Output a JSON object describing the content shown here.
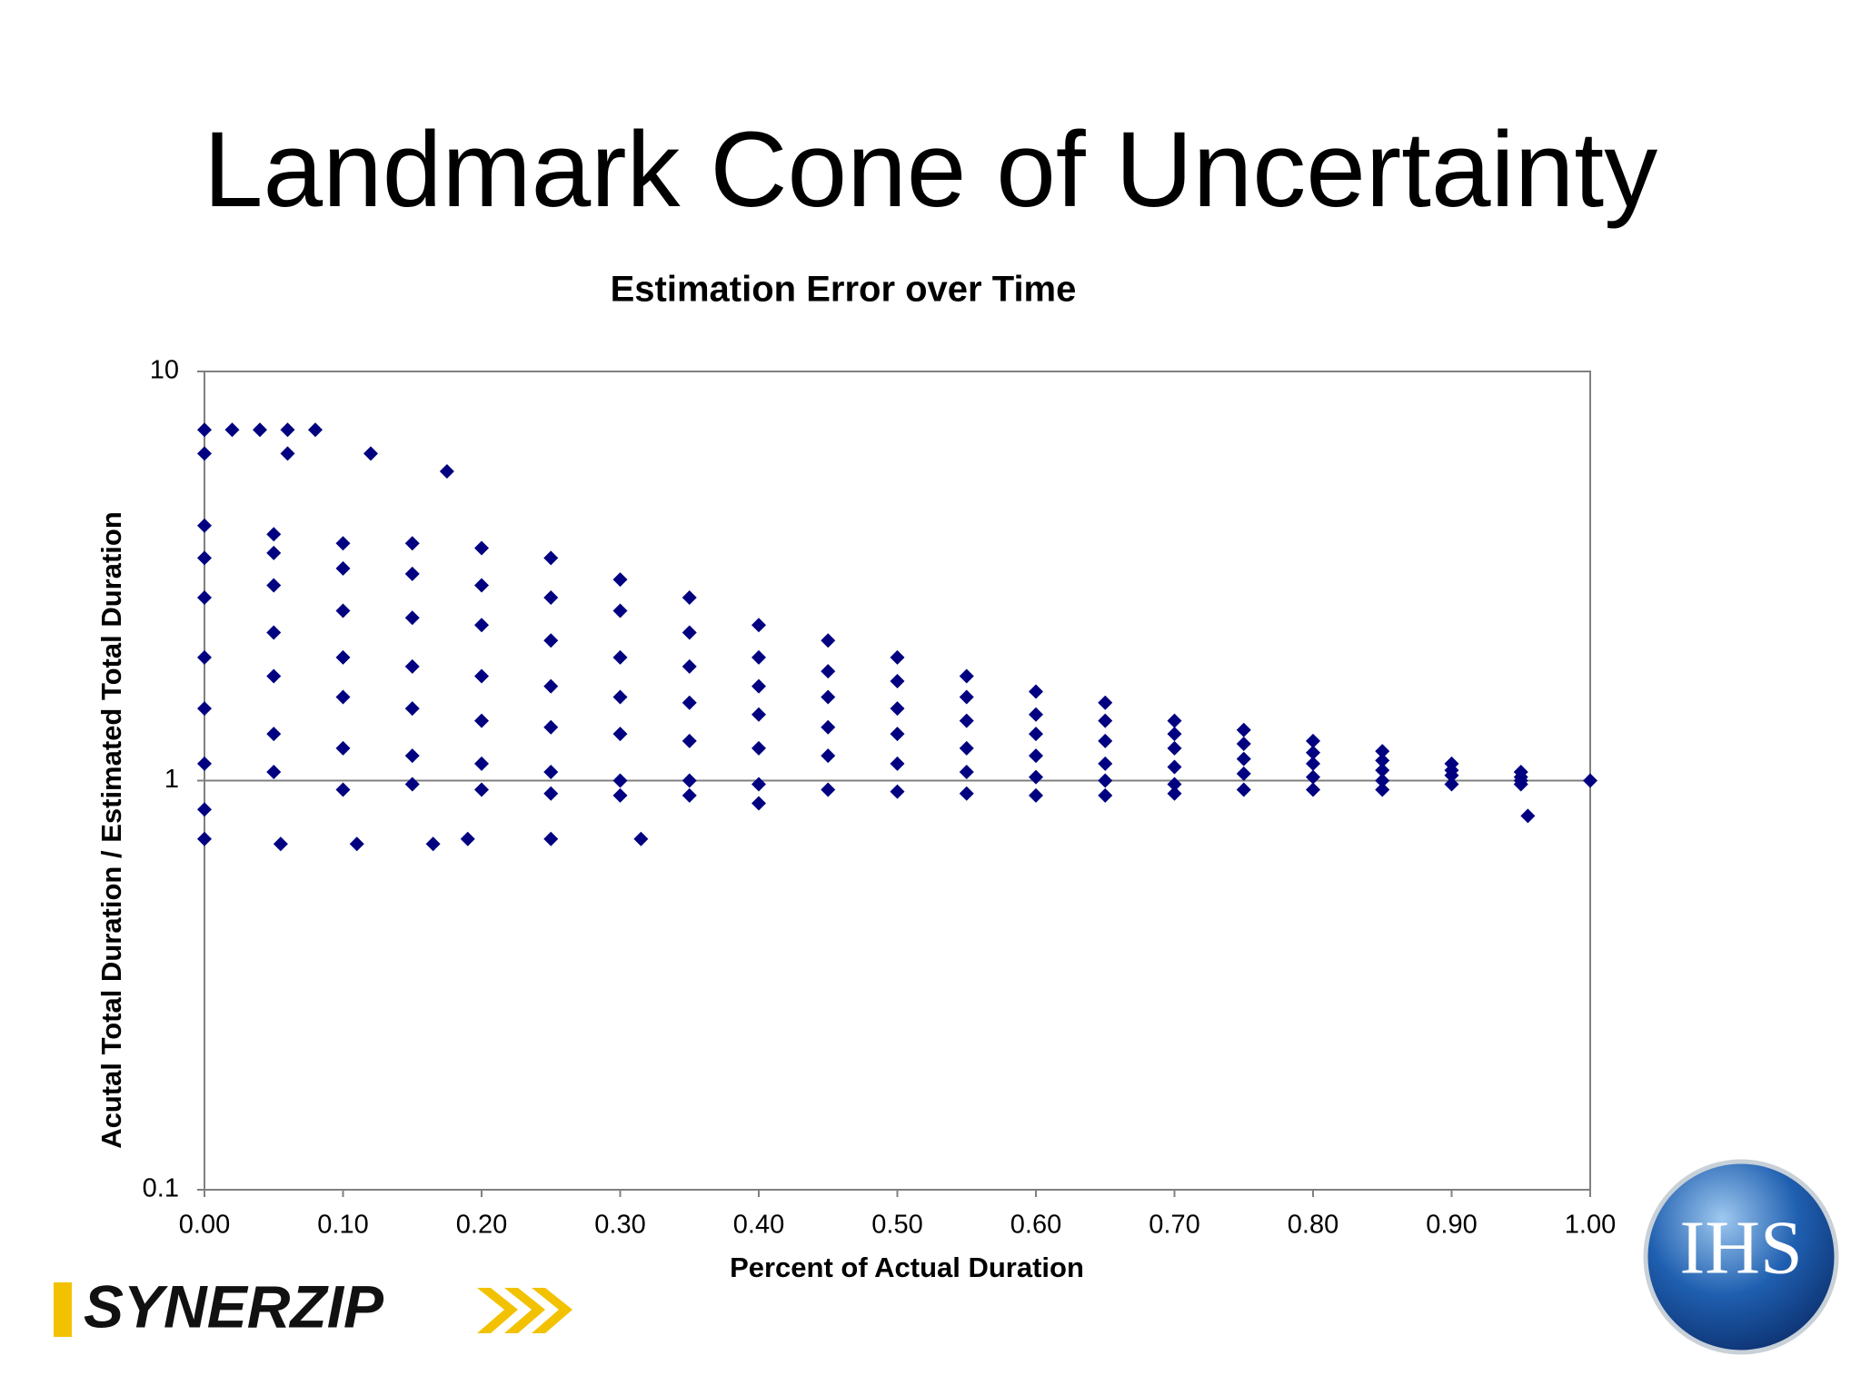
{
  "slide": {
    "title": "Landmark Cone of Uncertainty"
  },
  "logos": {
    "left": "SYNERZIP",
    "right": "IHS"
  },
  "chart_data": {
    "type": "scatter",
    "title": "Estimation Error over Time",
    "x_label": "Percent of Actual Duration",
    "y_label": "Acutal Total Duration / Estimated Total Duration",
    "color": "#000080",
    "yscale": "log",
    "grid": true,
    "xlim": [
      0,
      1
    ],
    "ylim": [
      0.1,
      10
    ],
    "xticks": [
      {
        "value": 0,
        "label": "0.00"
      },
      {
        "value": 0.1,
        "label": "0.10"
      },
      {
        "value": 0.2,
        "label": "0.20"
      },
      {
        "value": 0.3,
        "label": "0.30"
      },
      {
        "value": 0.4,
        "label": "0.40"
      },
      {
        "value": 0.5,
        "label": "0.50"
      },
      {
        "value": 0.6,
        "label": "0.60"
      },
      {
        "value": 0.7,
        "label": "0.70"
      },
      {
        "value": 0.8,
        "label": "0.80"
      },
      {
        "value": 0.9,
        "label": "0.90"
      },
      {
        "value": 1,
        "label": "1.00"
      }
    ],
    "yticks": [
      0.1,
      1,
      10
    ],
    "x": [
      0,
      0.02,
      0.04,
      0.06,
      0.08,
      0.12,
      0.175,
      0.06,
      0,
      0.055,
      0.11,
      0.165,
      0.19,
      0.25,
      0.315,
      0.955,
      0,
      0,
      0,
      0,
      0,
      0,
      0,
      0,
      0.05,
      0.05,
      0.05,
      0.05,
      0.05,
      0.05,
      0.05,
      0.1,
      0.1,
      0.1,
      0.1,
      0.1,
      0.1,
      0.1,
      0.15,
      0.15,
      0.15,
      0.15,
      0.15,
      0.15,
      0.15,
      0.2,
      0.2,
      0.2,
      0.2,
      0.2,
      0.2,
      0.2,
      0.25,
      0.25,
      0.25,
      0.25,
      0.25,
      0.25,
      0.25,
      0.3,
      0.3,
      0.3,
      0.3,
      0.3,
      0.3,
      0.3,
      0.35,
      0.35,
      0.35,
      0.35,
      0.35,
      0.35,
      0.35,
      0.4,
      0.4,
      0.4,
      0.4,
      0.4,
      0.4,
      0.4,
      0.45,
      0.45,
      0.45,
      0.45,
      0.45,
      0.45,
      0.5,
      0.5,
      0.5,
      0.5,
      0.5,
      0.5,
      0.55,
      0.55,
      0.55,
      0.55,
      0.55,
      0.55,
      0.6,
      0.6,
      0.6,
      0.6,
      0.6,
      0.6,
      0.65,
      0.65,
      0.65,
      0.65,
      0.65,
      0.65,
      0.7,
      0.7,
      0.7,
      0.7,
      0.7,
      0.7,
      0.75,
      0.75,
      0.75,
      0.75,
      0.75,
      0.8,
      0.8,
      0.8,
      0.8,
      0.8,
      0.85,
      0.85,
      0.85,
      0.85,
      0.85,
      0.9,
      0.9,
      0.9,
      0.9,
      0.95,
      0.95,
      0.95,
      0.95,
      1
    ],
    "values": [
      7.2,
      7.2,
      7.2,
      7.2,
      7.2,
      6.3,
      5.7,
      6.3,
      6.3,
      0.7,
      0.7,
      0.7,
      0.72,
      0.72,
      0.72,
      0.82,
      4.2,
      3.5,
      2.8,
      2,
      1.5,
      1.1,
      0.85,
      0.72,
      4,
      3.6,
      3,
      2.3,
      1.8,
      1.3,
      1.05,
      3.8,
      3.3,
      2.6,
      2,
      1.6,
      1.2,
      0.95,
      3.8,
      3.2,
      2.5,
      1.9,
      1.5,
      1.15,
      0.98,
      3.7,
      3,
      2.4,
      1.8,
      1.4,
      1.1,
      0.95,
      3.5,
      2.8,
      2.2,
      1.7,
      1.35,
      1.05,
      0.93,
      3.1,
      2.6,
      2,
      1.6,
      1.3,
      1,
      0.92,
      2.8,
      2.3,
      1.9,
      1.55,
      1.25,
      1,
      0.92,
      2.4,
      2,
      1.7,
      1.45,
      1.2,
      0.98,
      0.88,
      2.2,
      1.85,
      1.6,
      1.35,
      1.15,
      0.95,
      2,
      1.75,
      1.5,
      1.3,
      1.1,
      0.94,
      1.8,
      1.6,
      1.4,
      1.2,
      1.05,
      0.93,
      1.65,
      1.45,
      1.3,
      1.15,
      1.02,
      0.92,
      1.55,
      1.4,
      1.25,
      1.1,
      1,
      0.92,
      1.4,
      1.3,
      1.2,
      1.08,
      0.98,
      0.93,
      1.33,
      1.23,
      1.13,
      1.04,
      0.95,
      1.25,
      1.17,
      1.1,
      1.02,
      0.95,
      1.18,
      1.12,
      1.06,
      1,
      0.95,
      1.1,
      1.06,
      1.03,
      0.98,
      1.05,
      1.02,
      1,
      0.98,
      1
    ]
  }
}
